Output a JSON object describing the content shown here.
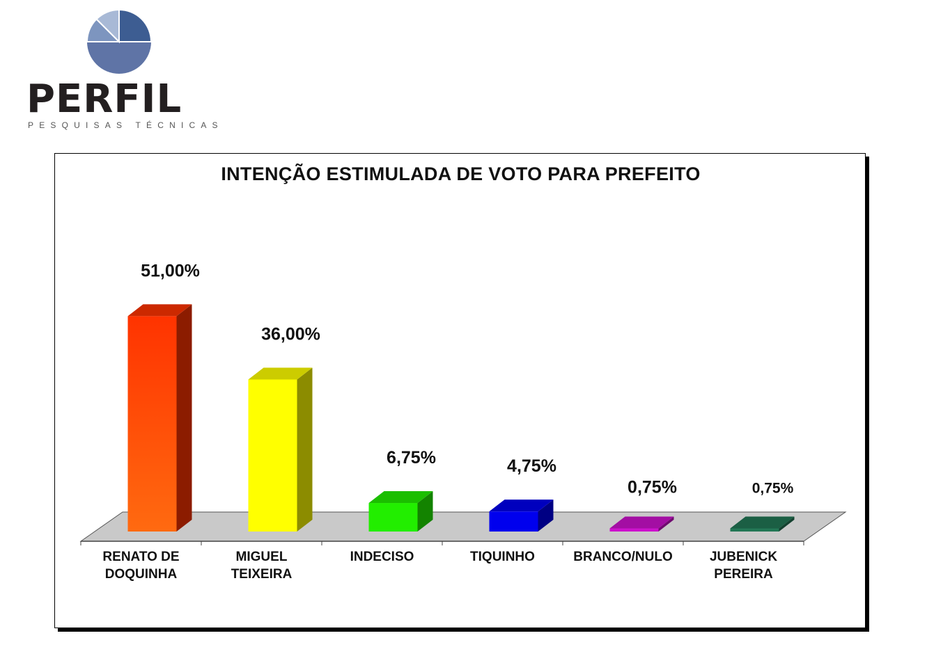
{
  "logo": {
    "wordmark": "PERFIL",
    "tagline": "PESQUISAS TÉCNICAS",
    "icon": "pie-logo-icon"
  },
  "colors": {
    "floor": "#c9c9c9",
    "bar_colors": [
      "#ff3300",
      "#ffff00",
      "#22ee00",
      "#0000ee",
      "#cc11cc",
      "#227755"
    ]
  },
  "chart_data": {
    "type": "bar",
    "title": "INTENÇÃO ESTIMULADA DE VOTO PARA PREFEITO",
    "categories": [
      [
        "RENATO DE",
        "DOQUINHA"
      ],
      [
        "MIGUEL",
        "TEIXEIRA"
      ],
      [
        "INDECISO"
      ],
      [
        "TIQUINHO"
      ],
      [
        "BRANCO/NULO"
      ],
      [
        "JUBENICK",
        "PEREIRA"
      ]
    ],
    "values": [
      51.0,
      36.0,
      6.75,
      4.75,
      0.75,
      0.75
    ],
    "value_labels": [
      "51,00%",
      "36,00%",
      "6,75%",
      "4,75%",
      "0,75%",
      "0,75%"
    ],
    "ylim": [
      0,
      60
    ],
    "grid": false,
    "style": "3d-column"
  }
}
